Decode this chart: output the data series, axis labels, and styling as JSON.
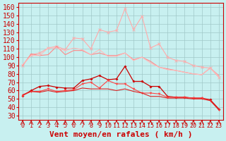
{
  "background_color": "#c8f0f0",
  "grid_color": "#a0c8c8",
  "title": "",
  "xlabel": "Vent moyen/en rafales ( km/h )",
  "ylabel": "",
  "xlim": [
    -0.5,
    23.5
  ],
  "ylim": [
    25,
    165
  ],
  "yticks": [
    30,
    40,
    50,
    60,
    70,
    80,
    90,
    100,
    110,
    120,
    130,
    140,
    150,
    160
  ],
  "xticks": [
    0,
    1,
    2,
    3,
    4,
    5,
    6,
    7,
    8,
    9,
    10,
    11,
    12,
    13,
    14,
    15,
    16,
    17,
    18,
    19,
    20,
    21,
    22,
    23
  ],
  "x": [
    0,
    1,
    2,
    3,
    4,
    5,
    6,
    7,
    8,
    9,
    10,
    11,
    12,
    13,
    14,
    15,
    16,
    17,
    18,
    19,
    20,
    21,
    22,
    23
  ],
  "line1_color": "#ffaaaa",
  "line1_y": [
    90,
    103,
    105,
    111,
    113,
    109,
    123,
    122,
    110,
    133,
    130,
    132,
    158,
    133,
    149,
    111,
    116,
    100,
    96,
    95,
    90,
    88,
    87,
    76
  ],
  "line2_color": "#ff8888",
  "line2_y": [
    90,
    104,
    102,
    103,
    113,
    103,
    108,
    108,
    103,
    105,
    102,
    102,
    105,
    97,
    100,
    95,
    88,
    86,
    84,
    82,
    80,
    79,
    87,
    78
  ],
  "line3_color": "#ffbbbb",
  "line3_y": [
    91,
    102,
    102,
    111,
    111,
    108,
    111,
    109,
    103,
    109,
    101,
    101,
    105,
    96,
    100,
    93,
    88,
    85,
    84,
    82,
    80,
    79,
    87,
    77
  ],
  "line4_color": "#cc0000",
  "line4_y": [
    54,
    60,
    65,
    66,
    64,
    63,
    63,
    72,
    74,
    78,
    73,
    74,
    89,
    71,
    71,
    65,
    65,
    53,
    52,
    52,
    51,
    51,
    49,
    38
  ],
  "line5_color": "#ff4444",
  "line5_y": [
    54,
    59,
    59,
    62,
    59,
    60,
    61,
    68,
    70,
    63,
    72,
    68,
    68,
    62,
    57,
    57,
    56,
    52,
    52,
    52,
    51,
    51,
    48,
    37
  ],
  "line6_color": "#dd2222",
  "line6_y": [
    55,
    59,
    58,
    60,
    58,
    59,
    60,
    63,
    62,
    62,
    62,
    60,
    62,
    59,
    57,
    53,
    53,
    51,
    51,
    51,
    50,
    50,
    48,
    37
  ],
  "arrow_color": "#cc0000",
  "font_color": "#cc0000",
  "font_size": 7,
  "xlabel_fontsize": 8,
  "ytick_fontsize": 7,
  "xtick_fontsize": 6
}
